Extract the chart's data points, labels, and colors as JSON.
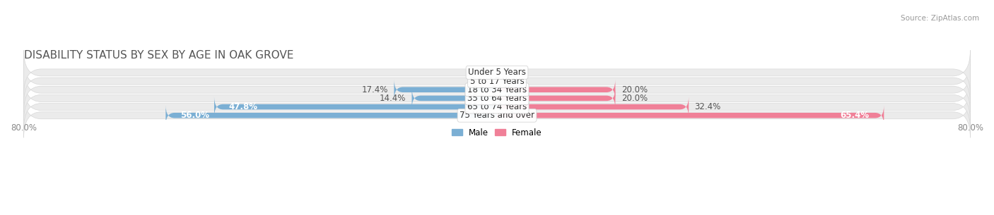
{
  "title": "DISABILITY STATUS BY SEX BY AGE IN OAK GROVE",
  "source": "Source: ZipAtlas.com",
  "categories": [
    "Under 5 Years",
    "5 to 17 Years",
    "18 to 34 Years",
    "35 to 64 Years",
    "65 to 74 Years",
    "75 Years and over"
  ],
  "male_values": [
    0.0,
    0.0,
    17.4,
    14.4,
    47.8,
    56.0
  ],
  "female_values": [
    0.0,
    0.0,
    20.0,
    20.0,
    32.4,
    65.4
  ],
  "male_color": "#7bafd4",
  "female_color": "#f08098",
  "row_bg_color": "#ebebeb",
  "row_border_color": "#d8d8d8",
  "max_value": 80.0,
  "title_fontsize": 11,
  "tick_fontsize": 8.5,
  "label_fontsize": 8.5,
  "category_fontsize": 8.5,
  "bar_height": 0.62,
  "figsize": [
    14.06,
    3.05
  ],
  "dpi": 100
}
